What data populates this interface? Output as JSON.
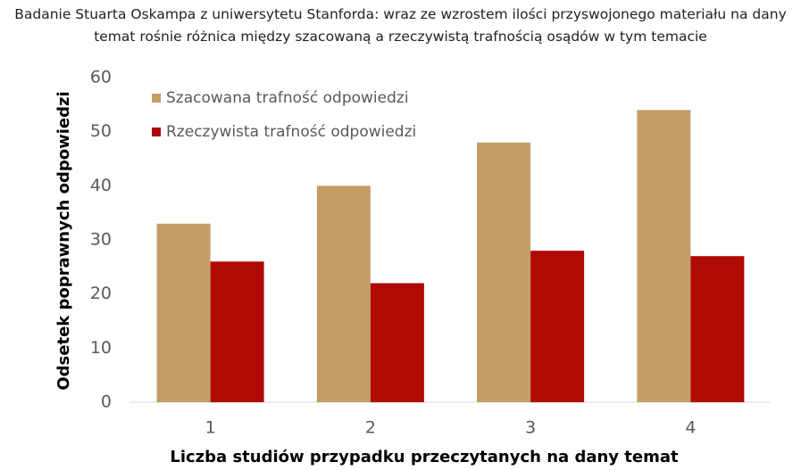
{
  "chart_data": {
    "type": "bar",
    "title": "Badanie Stuarta Oskampa z uniwersytetu Stanforda: wraz ze wzrostem ilości przyswojonego materiału na dany temat rośnie różnica między szacowaną a rzeczywistą trafnością osądów w tym temacie",
    "x_label": "Liczba studiów przypadku przeczytanych na dany temat",
    "y_label": "Odsetek poprawnych odpowiedzi",
    "categories": [
      "1",
      "2",
      "3",
      "4"
    ],
    "series": [
      {
        "name": "Szacowana trafność odpowiedzi",
        "color": "#c49e67",
        "values": [
          33,
          40,
          48,
          54
        ]
      },
      {
        "name": "Rzeczywista trafność odpowiedzi",
        "color": "#b00a04",
        "values": [
          26,
          22,
          28,
          27
        ]
      }
    ],
    "ylim": [
      0,
      60
    ],
    "yticks": [
      0,
      10,
      20,
      30,
      40,
      50,
      60
    ],
    "grid": false,
    "legend": "upper left"
  }
}
